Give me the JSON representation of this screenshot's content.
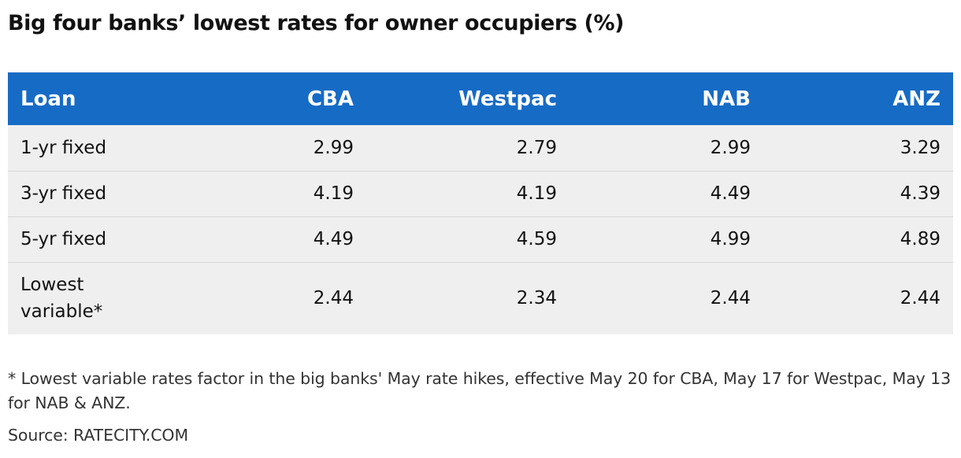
{
  "title": "Big four banks’ lowest rates for owner occupiers (%)",
  "header": {
    "columns": [
      "Loan",
      "CBA",
      "Westpac",
      "NAB",
      "ANZ"
    ]
  },
  "rows": [
    {
      "loan": "1-yr fixed",
      "values": [
        "2.99",
        "2.79",
        "2.99",
        "3.29"
      ]
    },
    {
      "loan": "3-yr fixed",
      "values": [
        "4.19",
        "4.19",
        "4.49",
        "4.39"
      ]
    },
    {
      "loan": "5-yr fixed",
      "values": [
        "4.49",
        "4.59",
        "4.99",
        "4.89"
      ]
    },
    {
      "loan": "Lowest variable*",
      "values": [
        "2.44",
        "2.34",
        "2.44",
        "2.44"
      ]
    }
  ],
  "footnote": "* Lowest variable rates factor in the big banks' May rate hikes, effective May 20 for CBA, May 17 for Westpac, May 13 for NAB & ANZ.",
  "source": "Source: RATECITY.COM",
  "colors": {
    "header_background": "#166bc5",
    "header_text": "#ffffff",
    "row_background": "#efefef",
    "row_divider": "#d6d6d6"
  }
}
